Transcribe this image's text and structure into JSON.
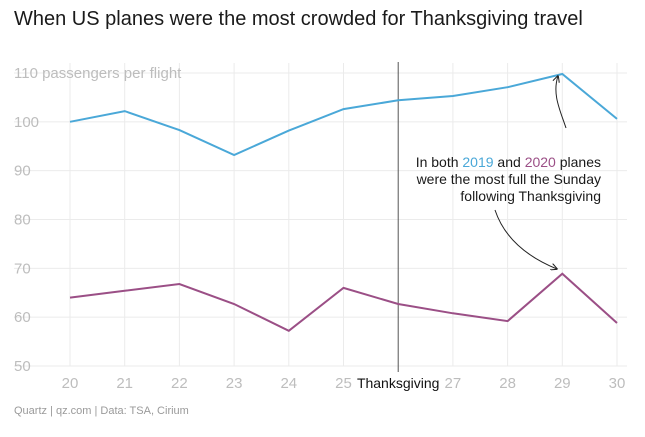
{
  "chart_data": {
    "type": "line",
    "title": "When US planes were the most crowded for Thanksgiving travel",
    "ylabel_unit": "passengers per flight",
    "x": [
      20,
      21,
      22,
      23,
      24,
      25,
      26,
      27,
      28,
      29,
      30
    ],
    "xlim": [
      20,
      30
    ],
    "ylim": [
      50,
      110
    ],
    "yticks": [
      50,
      60,
      70,
      80,
      90,
      100,
      110
    ],
    "xtick_labels": [
      "20",
      "21",
      "22",
      "23",
      "24",
      "25",
      "27",
      "28",
      "29",
      "30"
    ],
    "series": [
      {
        "name": "2019",
        "color": "#4aa8d8",
        "values": [
          100,
          102.2,
          98.3,
          93.2,
          98.2,
          102.6,
          104.4,
          105.3,
          107.1,
          109.8,
          100.6
        ]
      },
      {
        "name": "2020",
        "color": "#9b4f86",
        "values": [
          64,
          65.4,
          66.8,
          62.7,
          57.2,
          66,
          62.7,
          60.8,
          59.2,
          68.9,
          58.8
        ]
      }
    ],
    "marker": {
      "x": 26,
      "label": "Thanksgiving"
    },
    "annotation": {
      "line1_prefix": "In both ",
      "year_a": "2019",
      "and": " and ",
      "year_b": "2020",
      "line1_suffix": " planes",
      "line2": "were the most full the Sunday",
      "line3": "following Thanksgiving"
    }
  },
  "source": "Quartz | qz.com | Data: TSA, Cirium"
}
